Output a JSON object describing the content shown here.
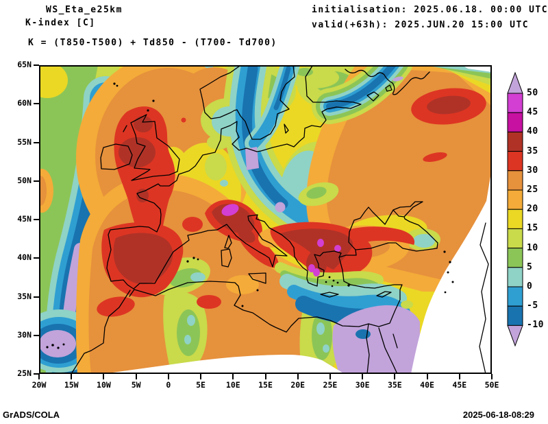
{
  "header": {
    "model": "WS_Eta_e25km",
    "variable": "K-index [C]",
    "formula": "K = (T850-T500) + Td850 - (T700- Td700)",
    "initialisation": "initialisation: 2025.06.18. 00:00 UTC",
    "valid": "valid(+63h): 2025.JUN.20 15:00 UTC"
  },
  "footer": {
    "credit": "GrADS/COLA",
    "generated": "2025-06-18-08:29"
  },
  "map": {
    "lat_ticks": [
      "65N",
      "60N",
      "55N",
      "50N",
      "45N",
      "40N",
      "35N",
      "30N",
      "25N"
    ],
    "lon_ticks": [
      "20W",
      "15W",
      "10W",
      "5W",
      "0",
      "5E",
      "10E",
      "15E",
      "20E",
      "25E",
      "30E",
      "35E",
      "40E",
      "45E",
      "50E"
    ]
  },
  "colorbar": {
    "value_labels": [
      "50",
      "45",
      "40",
      "35",
      "30",
      "25",
      "20",
      "15",
      "10",
      "5",
      "0",
      "-5",
      "-10"
    ],
    "cell_order": [
      "orchid",
      "magenta",
      "brick",
      "red",
      "orange",
      "amber",
      "yellow",
      "ylgreen",
      "green",
      "teal",
      "azure",
      "blue"
    ],
    "arrow_color_name": "plum",
    "bands": [
      {
        "name": "plum",
        "color": "#c2a3da"
      },
      {
        "name": "orchid",
        "color": "#d23fd2"
      },
      {
        "name": "magenta",
        "color": "#c611a1"
      },
      {
        "name": "brick",
        "color": "#b03227"
      },
      {
        "name": "red",
        "color": "#dd3523"
      },
      {
        "name": "orange",
        "color": "#e6913c"
      },
      {
        "name": "amber",
        "color": "#f4ab39"
      },
      {
        "name": "yellow",
        "color": "#ead825"
      },
      {
        "name": "ylgreen",
        "color": "#c9da4a"
      },
      {
        "name": "green",
        "color": "#8cc557"
      },
      {
        "name": "teal",
        "color": "#8fd2c6"
      },
      {
        "name": "azure",
        "color": "#2f9fd2"
      },
      {
        "name": "blue",
        "color": "#1973af"
      }
    ]
  }
}
